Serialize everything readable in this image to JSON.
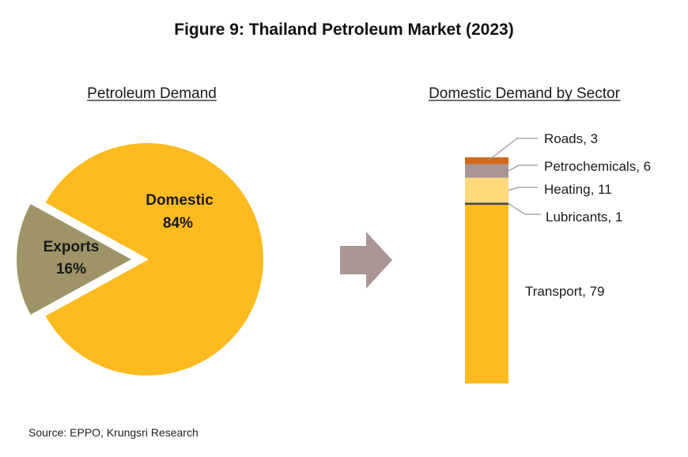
{
  "title": "Figure 9: Thailand Petroleum Market (2023)",
  "source": "Source: EPPO, Krungsri Research",
  "colors": {
    "domestic": "#FDBB1F",
    "exports": "#9E9468",
    "arrow": "#A99594",
    "transport": "#FDBB1F",
    "lubricants": "#4A4A4A",
    "heating": "#FFD97A",
    "petrochemicals": "#A99594",
    "roads": "#D5691A",
    "leader": "#999999"
  },
  "chart_data": [
    {
      "type": "pie",
      "title": "Petroleum Demand",
      "slices": [
        {
          "name": "Domestic",
          "value": 84,
          "label": "84%"
        },
        {
          "name": "Exports",
          "value": 16,
          "label": "16%",
          "exploded": true
        }
      ]
    },
    {
      "type": "bar",
      "subtype": "stacked",
      "title": "Domestic Demand by Sector",
      "segments": [
        {
          "name": "Transport",
          "value": 79,
          "label": "Transport, 79"
        },
        {
          "name": "Lubricants",
          "value": 1,
          "label": "Lubricants, 1"
        },
        {
          "name": "Heating",
          "value": 11,
          "label": "Heating, 11"
        },
        {
          "name": "Petrochemicals",
          "value": 6,
          "label": "Petrochemicals, 6"
        },
        {
          "name": "Roads",
          "value": 3,
          "label": "Roads, 3"
        }
      ]
    }
  ]
}
